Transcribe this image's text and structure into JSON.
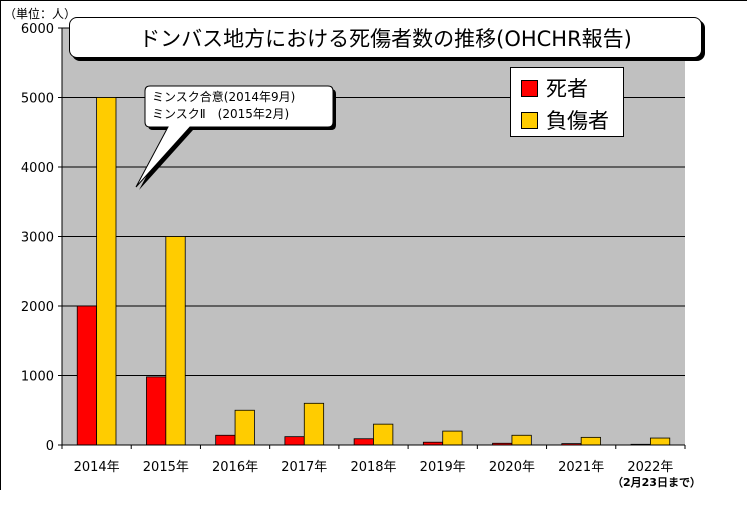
{
  "unit_label": "（単位：人）",
  "title": "ドンバス地方における死傷者数の推移(OHCHR報告)",
  "footnote": "（2月23日まで）",
  "annotation": {
    "line1": "ミンスク合意(2014年9月)",
    "line2": "ミンスクⅡ　(2015年2月)"
  },
  "colors": {
    "plot_background": "#c0c0c0",
    "deaths": "#ff0000",
    "injuries": "#ffcc00"
  },
  "chart_data": {
    "type": "bar",
    "title": "ドンバス地方における死傷者数の推移(OHCHR報告)",
    "categories": [
      "2014年",
      "2015年",
      "2016年",
      "2017年",
      "2018年",
      "2019年",
      "2020年",
      "2021年",
      "2022年"
    ],
    "series": [
      {
        "name": "死者",
        "values": [
          2000,
          980,
          140,
          120,
          90,
          40,
          25,
          20,
          10
        ]
      },
      {
        "name": "負傷者",
        "values": [
          5000,
          3000,
          500,
          600,
          300,
          200,
          140,
          110,
          100
        ]
      }
    ],
    "ylim": [
      0,
      6000
    ],
    "yticks": [
      0,
      1000,
      2000,
      3000,
      4000,
      5000,
      6000
    ],
    "grid": true,
    "legend_position": "top-right"
  }
}
